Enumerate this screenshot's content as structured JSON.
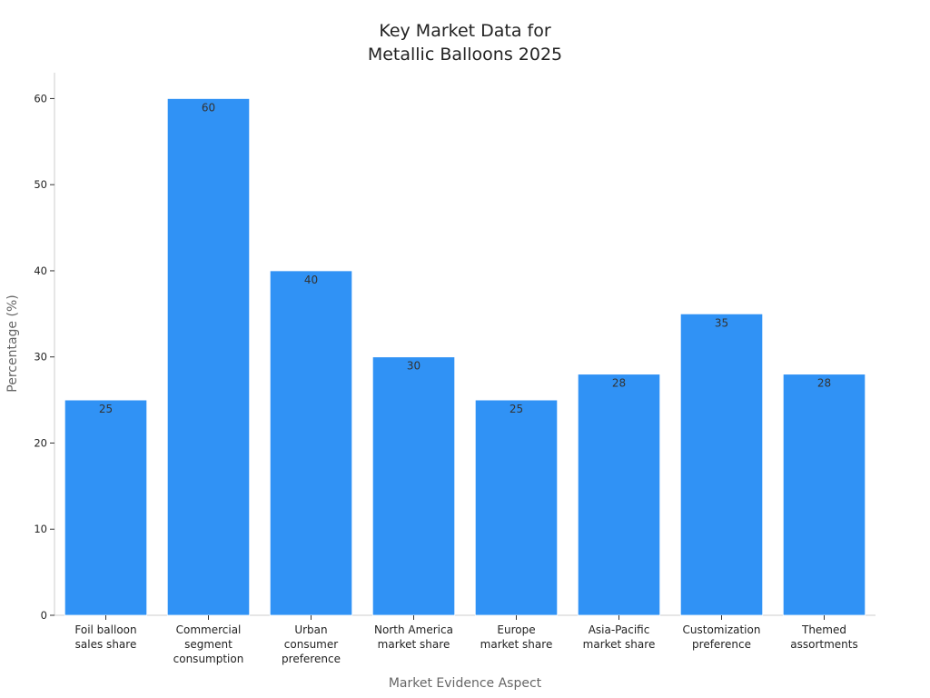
{
  "chart_data": {
    "type": "bar",
    "title_lines": [
      "Key Market Data for",
      "Metallic Balloons 2025"
    ],
    "xlabel": "Market Evidence Aspect",
    "ylabel": "Percentage (%)",
    "ylim": [
      0,
      63
    ],
    "yticks": [
      0,
      10,
      20,
      30,
      40,
      50,
      60
    ],
    "categories": [
      [
        "Foil balloon",
        "sales share"
      ],
      [
        "Commercial",
        "segment",
        "consumption"
      ],
      [
        "Urban",
        "consumer",
        "preference"
      ],
      [
        "North America",
        "market share"
      ],
      [
        "Europe",
        "market share"
      ],
      [
        "Asia-Pacific",
        "market share"
      ],
      [
        "Customization",
        "preference"
      ],
      [
        "Themed",
        "assortments"
      ]
    ],
    "values": [
      25,
      60,
      40,
      30,
      25,
      28,
      35,
      28
    ],
    "data_labels": [
      "25",
      "60",
      "40",
      "30",
      "25",
      "28",
      "35",
      "28"
    ],
    "bar_color": "#3092f5",
    "grid": false,
    "legend": "none"
  }
}
